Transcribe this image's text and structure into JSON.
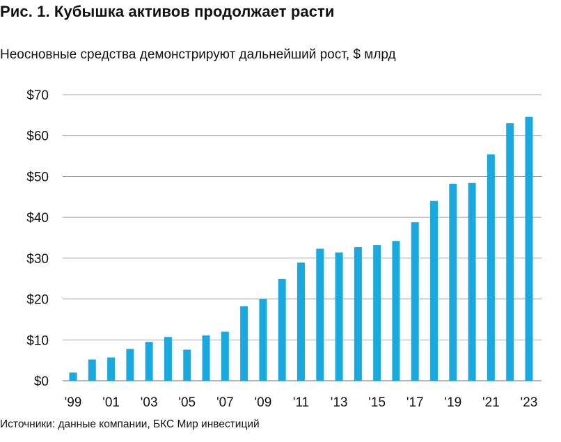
{
  "title": "Рис. 1. Кубышка активов продолжает расти",
  "subtitle": "Неосновные средства демонстрируют дальнейший рост, $ млрд",
  "source": "Источники: данные компании, БКС Мир инвестиций",
  "colors": {
    "bar": "#19a9e1",
    "grid": "#8a8a8a",
    "text": "#111111"
  },
  "chart_data": {
    "type": "bar",
    "title": "Рис. 1. Кубышка активов продолжает расти",
    "subtitle": "Неосновные средства демонстрируют дальнейший рост, $ млрд",
    "xlabel": "",
    "ylabel": "",
    "ylim": [
      0,
      70
    ],
    "grid": true,
    "yticks": [
      0,
      10,
      20,
      30,
      40,
      50,
      60,
      70
    ],
    "ytick_labels": [
      "$0",
      "$10",
      "$20",
      "$30",
      "$40",
      "$50",
      "$60",
      "$70"
    ],
    "categories": [
      "1999",
      "2000",
      "2001",
      "2002",
      "2003",
      "2004",
      "2005",
      "2006",
      "2007",
      "2008",
      "2009",
      "2010",
      "2011",
      "2012",
      "2013",
      "2014",
      "2015",
      "2016",
      "2017",
      "2018",
      "2019",
      "2020",
      "2021",
      "2022",
      "2023"
    ],
    "xtick_labels": [
      "'99",
      "",
      "'01",
      "",
      "'03",
      "",
      "'05",
      "",
      "'07",
      "",
      "'09",
      "",
      "'11",
      "",
      "'13",
      "",
      "'15",
      "",
      "'17",
      "",
      "'19",
      "",
      "'21",
      "",
      "'23"
    ],
    "values": [
      2.0,
      5.2,
      5.7,
      7.8,
      9.5,
      10.7,
      7.6,
      11.1,
      12.0,
      18.2,
      20.0,
      24.9,
      28.9,
      32.3,
      31.4,
      32.7,
      33.2,
      34.2,
      38.8,
      44.0,
      48.2,
      48.4,
      55.4,
      63.0,
      64.6
    ]
  }
}
